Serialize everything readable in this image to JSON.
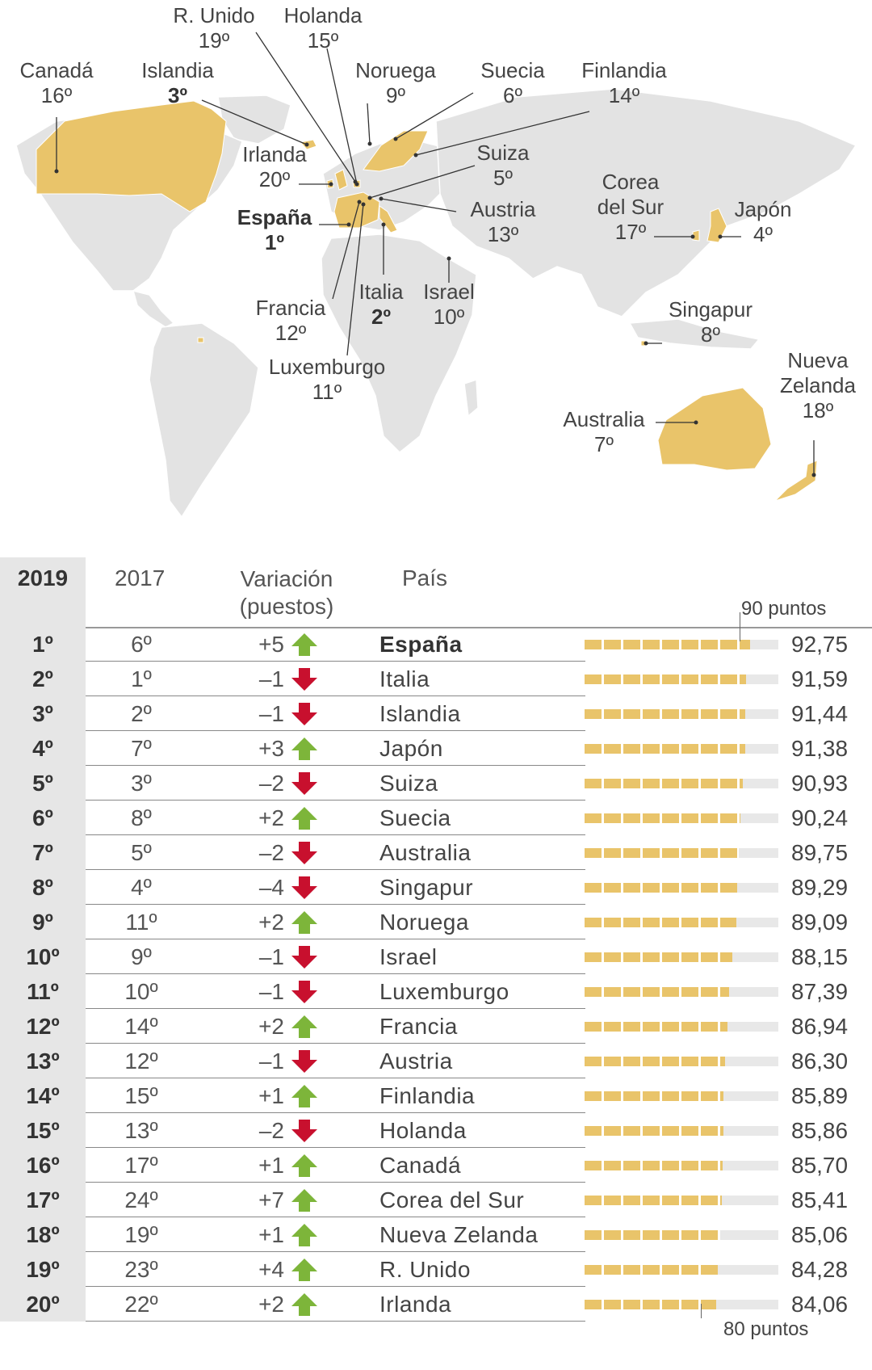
{
  "map": {
    "labels": [
      {
        "name": "R. Unido",
        "rank": "19º"
      },
      {
        "name": "Holanda",
        "rank": "15º"
      },
      {
        "name": "Canadá",
        "rank": "16º"
      },
      {
        "name": "Islandia",
        "rank": "3º"
      },
      {
        "name": "Noruega",
        "rank": "9º"
      },
      {
        "name": "Suecia",
        "rank": "6º"
      },
      {
        "name": "Finlandia",
        "rank": "14º"
      },
      {
        "name": "Irlanda",
        "rank": "20º"
      },
      {
        "name": "Suiza",
        "rank": "5º"
      },
      {
        "name": "España",
        "rank": "1º"
      },
      {
        "name": "Austria",
        "rank": "13º"
      },
      {
        "name": "Corea del Sur",
        "rank": "17º"
      },
      {
        "name": "Japón",
        "rank": "4º"
      },
      {
        "name": "Italia",
        "rank": "2º"
      },
      {
        "name": "Israel",
        "rank": "10º"
      },
      {
        "name": "Francia",
        "rank": "12º"
      },
      {
        "name": "Singapur",
        "rank": "8º"
      },
      {
        "name": "Luxemburgo",
        "rank": "11º"
      },
      {
        "name": "Nueva Zelanda",
        "rank": "18º"
      },
      {
        "name": "Australia",
        "rank": "7º"
      }
    ],
    "highlight_color": "#e9c46a",
    "land_color": "#e3e3e3"
  },
  "table": {
    "headers": {
      "y2019": "2019",
      "y2017": "2017",
      "variation": [
        "Variación",
        "(puestos)"
      ],
      "country": "País"
    },
    "top_marker": "90 puntos",
    "bottom_marker": "80 puntos",
    "up_color": "#7db53a",
    "down_color": "#c8102e",
    "rows": [
      {
        "rank": "1º",
        "rank2017": "6º",
        "variation": "+5",
        "dir": "up",
        "country": "España",
        "score": "92,75"
      },
      {
        "rank": "2º",
        "rank2017": "1º",
        "variation": "–1",
        "dir": "down",
        "country": "Italia",
        "score": "91,59"
      },
      {
        "rank": "3º",
        "rank2017": "2º",
        "variation": "–1",
        "dir": "down",
        "country": "Islandia",
        "score": "91,44"
      },
      {
        "rank": "4º",
        "rank2017": "7º",
        "variation": "+3",
        "dir": "up",
        "country": "Japón",
        "score": "91,38"
      },
      {
        "rank": "5º",
        "rank2017": "3º",
        "variation": "–2",
        "dir": "down",
        "country": "Suiza",
        "score": "90,93"
      },
      {
        "rank": "6º",
        "rank2017": "8º",
        "variation": "+2",
        "dir": "up",
        "country": "Suecia",
        "score": "90,24"
      },
      {
        "rank": "7º",
        "rank2017": "5º",
        "variation": "–2",
        "dir": "down",
        "country": "Australia",
        "score": "89,75"
      },
      {
        "rank": "8º",
        "rank2017": "4º",
        "variation": "–4",
        "dir": "down",
        "country": "Singapur",
        "score": "89,29"
      },
      {
        "rank": "9º",
        "rank2017": "11º",
        "variation": "+2",
        "dir": "up",
        "country": "Noruega",
        "score": "89,09"
      },
      {
        "rank": "10º",
        "rank2017": "9º",
        "variation": "–1",
        "dir": "down",
        "country": "Israel",
        "score": "88,15"
      },
      {
        "rank": "11º",
        "rank2017": "10º",
        "variation": "–1",
        "dir": "down",
        "country": "Luxemburgo",
        "score": "87,39"
      },
      {
        "rank": "12º",
        "rank2017": "14º",
        "variation": "+2",
        "dir": "up",
        "country": "Francia",
        "score": "86,94"
      },
      {
        "rank": "13º",
        "rank2017": "12º",
        "variation": "–1",
        "dir": "down",
        "country": "Austria",
        "score": "86,30"
      },
      {
        "rank": "14º",
        "rank2017": "15º",
        "variation": "+1",
        "dir": "up",
        "country": "Finlandia",
        "score": "85,89"
      },
      {
        "rank": "15º",
        "rank2017": "13º",
        "variation": "–2",
        "dir": "down",
        "country": "Holanda",
        "score": "85,86"
      },
      {
        "rank": "16º",
        "rank2017": "17º",
        "variation": "+1",
        "dir": "up",
        "country": "Canadá",
        "score": "85,70"
      },
      {
        "rank": "17º",
        "rank2017": "24º",
        "variation": "+7",
        "dir": "up",
        "country": "Corea del Sur",
        "score": "85,41"
      },
      {
        "rank": "18º",
        "rank2017": "19º",
        "variation": "+1",
        "dir": "up",
        "country": "Nueva Zelanda",
        "score": "85,06"
      },
      {
        "rank": "19º",
        "rank2017": "23º",
        "variation": "+4",
        "dir": "up",
        "country": "R. Unido",
        "score": "84,28"
      },
      {
        "rank": "20º",
        "rank2017": "22º",
        "variation": "+2",
        "dir": "up",
        "country": "Irlanda",
        "score": "84,06"
      }
    ]
  },
  "chart_data": {
    "type": "bar",
    "categories": [
      "España",
      "Italia",
      "Islandia",
      "Japón",
      "Suiza",
      "Suecia",
      "Australia",
      "Singapur",
      "Noruega",
      "Israel",
      "Luxemburgo",
      "Francia",
      "Austria",
      "Finlandia",
      "Holanda",
      "Canadá",
      "Corea del Sur",
      "Nueva Zelanda",
      "R. Unido",
      "Irlanda"
    ],
    "values": [
      92.75,
      91.59,
      91.44,
      91.38,
      90.93,
      90.24,
      89.75,
      89.29,
      89.09,
      88.15,
      87.39,
      86.94,
      86.3,
      85.89,
      85.86,
      85.7,
      85.41,
      85.06,
      84.28,
      84.06
    ],
    "rank_2019": [
      "1º",
      "2º",
      "3º",
      "4º",
      "5º",
      "6º",
      "7º",
      "8º",
      "9º",
      "10º",
      "11º",
      "12º",
      "13º",
      "14º",
      "15º",
      "16º",
      "17º",
      "18º",
      "19º",
      "20º"
    ],
    "rank_2017": [
      "6º",
      "1º",
      "2º",
      "7º",
      "3º",
      "8º",
      "5º",
      "4º",
      "11º",
      "9º",
      "10º",
      "14º",
      "12º",
      "15º",
      "13º",
      "17º",
      "24º",
      "19º",
      "23º",
      "22º"
    ],
    "variation": [
      5,
      -1,
      -1,
      3,
      -2,
      2,
      -2,
      -4,
      2,
      -1,
      -1,
      2,
      -1,
      1,
      -2,
      1,
      7,
      1,
      4,
      2
    ],
    "reference_markers": [
      "90 puntos",
      "80 puntos"
    ],
    "title": "",
    "xlabel": "",
    "ylabel": ""
  }
}
